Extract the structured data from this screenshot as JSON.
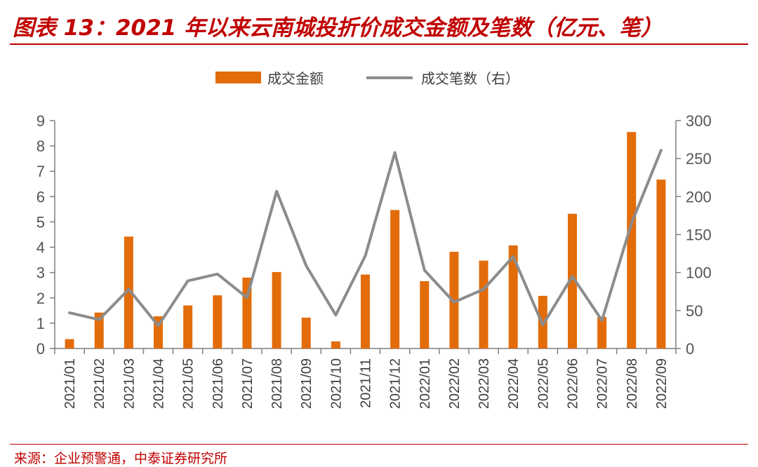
{
  "header": {
    "title": "图表 13：2021 年以来云南城投折价成交金额及笔数（亿元、笔）"
  },
  "footer": {
    "source": "来源：企业预警通，中泰证券研究所"
  },
  "colors": {
    "title": "#c00000",
    "bar": "#e36c0a",
    "line": "#8c8c8c",
    "axis": "#7f7f7f"
  },
  "chart_data": {
    "type": "bar",
    "categories": [
      "2021/01",
      "2021/02",
      "2021/03",
      "2021/04",
      "2021/05",
      "2021/06",
      "2021/07",
      "2021/08",
      "2021/09",
      "2021/10",
      "2021/11",
      "2021/12",
      "2022/01",
      "2022/02",
      "2022/03",
      "2022/04",
      "2022/05",
      "2022/06",
      "2022/07",
      "2022/08",
      "2022/09"
    ],
    "series": [
      {
        "name": "成交金额",
        "type": "bar",
        "axis": "left",
        "values": [
          0.37,
          1.42,
          4.42,
          1.27,
          1.7,
          2.1,
          2.8,
          3.02,
          1.22,
          0.28,
          2.92,
          5.47,
          2.66,
          3.82,
          3.47,
          4.07,
          2.08,
          5.32,
          1.25,
          8.55,
          6.67
        ]
      },
      {
        "name": "成交笔数（右）",
        "type": "line",
        "axis": "right",
        "values": [
          47,
          38,
          78,
          30,
          89,
          98,
          67,
          207,
          109,
          44,
          122,
          258,
          103,
          61,
          78,
          121,
          31,
          95,
          37,
          165,
          261
        ]
      }
    ],
    "y_left": {
      "ylim": [
        0,
        9
      ],
      "ticks": [
        "0",
        "1",
        "2",
        "3",
        "4",
        "5",
        "6",
        "7",
        "8",
        "9"
      ]
    },
    "y_right": {
      "ylim": [
        0,
        300
      ],
      "ticks": [
        "0",
        "50",
        "100",
        "150",
        "200",
        "250",
        "300"
      ]
    },
    "legend": "top-center",
    "grid": false
  }
}
